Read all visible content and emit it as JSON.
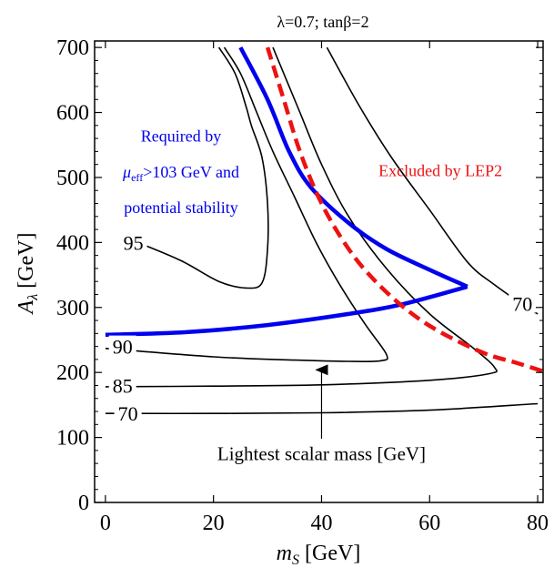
{
  "chart_data": {
    "type": "line",
    "title": "λ=0.7; tanβ=2",
    "xlabel": "m_S [GeV]",
    "ylabel": "A_λ [GeV]",
    "xlim": [
      -2,
      81
    ],
    "ylim": [
      0,
      710
    ],
    "xticks": [
      0,
      20,
      40,
      60,
      80
    ],
    "yticks": [
      0,
      100,
      200,
      300,
      400,
      500,
      600,
      700
    ],
    "grid": false,
    "colors": {
      "contour": "#000000",
      "stability": "#0000ee",
      "lep2": "#ee1111"
    },
    "contours": [
      {
        "label": "70",
        "points": [
          [
            0,
            137
          ],
          [
            20,
            137
          ],
          [
            40,
            138
          ],
          [
            60,
            142
          ],
          [
            80,
            152
          ]
        ]
      },
      {
        "label": "70",
        "points": [
          [
            41,
            700
          ],
          [
            47,
            610
          ],
          [
            53,
            530
          ],
          [
            60,
            450
          ],
          [
            67,
            370
          ],
          [
            72,
            335
          ],
          [
            78,
            300
          ],
          [
            80,
            290
          ]
        ]
      },
      {
        "label": "85",
        "points": [
          [
            0,
            178
          ],
          [
            20,
            179
          ],
          [
            40,
            181
          ],
          [
            60,
            188
          ],
          [
            71,
            198
          ],
          [
            72,
            208
          ],
          [
            68,
            238
          ],
          [
            60,
            290
          ],
          [
            52,
            360
          ],
          [
            45,
            440
          ],
          [
            40,
            520
          ],
          [
            36,
            600
          ],
          [
            33,
            660
          ],
          [
            31,
            700
          ]
        ]
      },
      {
        "label": "90",
        "points": [
          [
            0,
            237
          ],
          [
            20,
            224
          ],
          [
            35,
            219
          ],
          [
            45,
            217
          ],
          [
            51,
            218
          ],
          [
            52,
            228
          ],
          [
            48,
            275
          ],
          [
            43,
            340
          ],
          [
            39,
            400
          ],
          [
            35,
            470
          ],
          [
            31,
            540
          ],
          [
            28,
            600
          ],
          [
            25,
            660
          ],
          [
            22,
            700
          ]
        ]
      },
      {
        "label": "95",
        "points": [
          [
            6,
            400
          ],
          [
            14,
            372
          ],
          [
            21,
            340
          ],
          [
            26,
            330
          ],
          [
            29,
            338
          ],
          [
            30,
            390
          ],
          [
            30,
            460
          ],
          [
            29,
            530
          ],
          [
            27,
            580
          ],
          [
            26,
            610
          ],
          [
            24,
            660
          ],
          [
            21,
            700
          ]
        ]
      }
    ],
    "contour_labels": [
      {
        "text": "95",
        "x": 5,
        "y": 400
      },
      {
        "text": "90",
        "x": 3,
        "y": 240
      },
      {
        "text": "85",
        "x": 3,
        "y": 180
      },
      {
        "text": "70",
        "x": 4,
        "y": 137
      },
      {
        "text": "70",
        "x": 77,
        "y": 306
      }
    ],
    "series": [
      {
        "name": "Required by μeff>103 GeV and potential stability",
        "points": [
          [
            0,
            258
          ],
          [
            15,
            262
          ],
          [
            30,
            273
          ],
          [
            45,
            290
          ],
          [
            55,
            305
          ],
          [
            67,
            332
          ],
          [
            60,
            358
          ],
          [
            52,
            390
          ],
          [
            45,
            430
          ],
          [
            38,
            485
          ],
          [
            34,
            540
          ],
          [
            30,
            620
          ],
          [
            25,
            700
          ]
        ]
      },
      {
        "name": "Excluded by LEP2",
        "points": [
          [
            30,
            700
          ],
          [
            33,
            620
          ],
          [
            36,
            540
          ],
          [
            40,
            460
          ],
          [
            45,
            390
          ],
          [
            50,
            340
          ],
          [
            56,
            295
          ],
          [
            62,
            262
          ],
          [
            70,
            230
          ],
          [
            76,
            215
          ],
          [
            81,
            202
          ]
        ]
      }
    ],
    "annotations": [
      {
        "id": "stability_label_1",
        "text": "Required by",
        "x": 14,
        "y": 555
      },
      {
        "id": "stability_label_2",
        "text": "μeff>103 GeV and",
        "x": 14,
        "y": 500
      },
      {
        "id": "stability_label_3",
        "text": "potential stability",
        "x": 14,
        "y": 445
      },
      {
        "id": "lep2_label",
        "text": "Excluded by LEP2",
        "x": 62,
        "y": 502
      },
      {
        "id": "arrow_label",
        "text": "Lightest scalar mass [GeV]",
        "x": 40,
        "y": 65
      }
    ],
    "arrow": {
      "from": [
        40,
        98
      ],
      "to": [
        40,
        218
      ]
    }
  }
}
